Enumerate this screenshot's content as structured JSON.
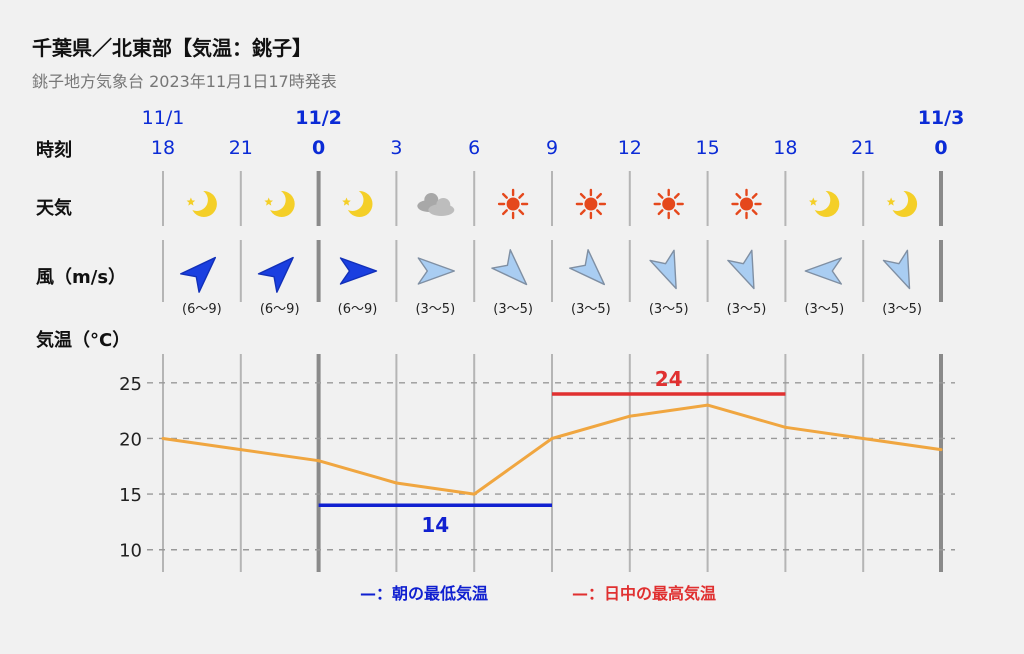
{
  "header": {
    "title": "千葉県／北東部【気温：銚子】",
    "subtitle": "銚子地方気象台 2023年11月1日17時発表"
  },
  "rows": {
    "time_label": "時刻",
    "weather_label": "天気",
    "wind_label": "風（m/s）",
    "temp_label": "気温（°C）"
  },
  "timeline": [
    {
      "hour": "18",
      "date": "11/1",
      "weather": "clear-night",
      "wind_dir_deg": 225,
      "wind_range": "(6〜9)",
      "wind_level": "strong"
    },
    {
      "hour": "21",
      "weather": "clear-night",
      "wind_dir_deg": 225,
      "wind_range": "(6〜9)",
      "wind_level": "strong"
    },
    {
      "hour": "0",
      "date": "11/2",
      "weather": "clear-night",
      "wind_dir_deg": 270,
      "wind_range": "(6〜9)",
      "wind_level": "strong",
      "day_start": true
    },
    {
      "hour": "3",
      "weather": "cloudy",
      "wind_dir_deg": 270,
      "wind_range": "(3〜5)",
      "wind_level": "weak"
    },
    {
      "hour": "6",
      "weather": "sunny",
      "wind_dir_deg": 315,
      "wind_range": "(3〜5)",
      "wind_level": "weak"
    },
    {
      "hour": "9",
      "weather": "sunny",
      "wind_dir_deg": 315,
      "wind_range": "(3〜5)",
      "wind_level": "weak"
    },
    {
      "hour": "12",
      "weather": "sunny",
      "wind_dir_deg": 337,
      "wind_range": "(3〜5)",
      "wind_level": "weak"
    },
    {
      "hour": "15",
      "weather": "sunny",
      "wind_dir_deg": 337,
      "wind_range": "(3〜5)",
      "wind_level": "weak"
    },
    {
      "hour": "18",
      "weather": "clear-night",
      "wind_dir_deg": 90,
      "wind_range": "(3〜5)",
      "wind_level": "weak"
    },
    {
      "hour": "21",
      "weather": "clear-night",
      "wind_dir_deg": 337,
      "wind_range": "(3〜5)",
      "wind_level": "weak"
    },
    {
      "hour": "0",
      "date": "11/3",
      "day_start": true
    }
  ],
  "chart_data": {
    "type": "line",
    "x": [
      "11/1 18",
      "11/1 21",
      "11/2 0",
      "11/2 3",
      "11/2 6",
      "11/2 9",
      "11/2 12",
      "11/2 15",
      "11/2 18",
      "11/2 21",
      "11/3 0"
    ],
    "series": [
      {
        "values": [
          20,
          19,
          18,
          16,
          15,
          20,
          22,
          23,
          21,
          20,
          19
        ],
        "color": "#f0a640"
      }
    ],
    "ylabel": "気温（°C）",
    "yticks": [
      10,
      15,
      20,
      25
    ],
    "ylim": [
      8,
      27.5
    ],
    "grid": true,
    "min_temp": {
      "value": 14,
      "from": "11/2 0",
      "to": "11/2 9",
      "color": "#1020d0"
    },
    "max_temp": {
      "value": 24,
      "from": "11/2 9",
      "to": "11/2 18",
      "color": "#e03030"
    }
  },
  "legend": {
    "min_label": "—：朝の最低気温",
    "max_label": "—：日中の最高気温"
  },
  "colors": {
    "date_blue": "#0b2bd6",
    "strong_wind": "#1a3fe0",
    "weak_wind": "#a9cdf2",
    "moon": "#f4cf28",
    "sun": "#e5481c",
    "cloud": "#bdbdbd"
  }
}
